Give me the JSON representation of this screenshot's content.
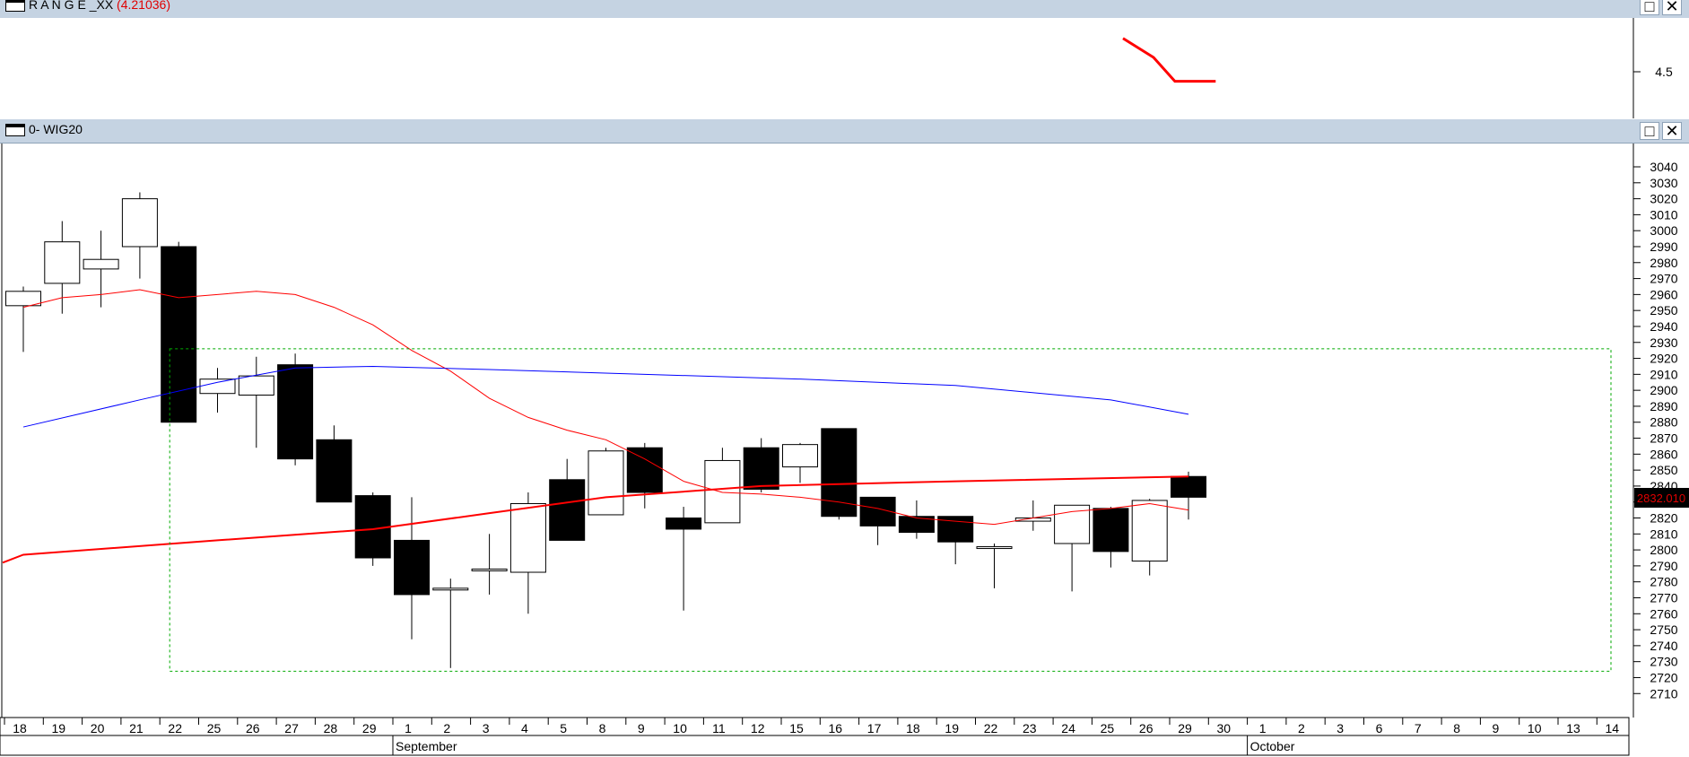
{
  "panes": {
    "range": {
      "title": "R A N G E _XX",
      "value": "(4.21036)",
      "ytick": "4.5"
    },
    "main": {
      "title": "0- WIG20",
      "price_marker": "2832.010"
    }
  },
  "colors": {
    "header_bg": "#c5d3e2",
    "ma_short": "#ff0000",
    "ma_long": "#0000ff",
    "ma_mid": "#ff0000",
    "range_line": "#ff0000",
    "box": "#00aa00"
  },
  "chart_data": {
    "type": "candlestick",
    "title": "0- WIG20",
    "ylim": [
      2700,
      3050
    ],
    "yticks": [
      3040,
      3030,
      3020,
      3010,
      3000,
      2990,
      2980,
      2970,
      2960,
      2950,
      2940,
      2930,
      2920,
      2910,
      2900,
      2890,
      2880,
      2870,
      2860,
      2850,
      2840,
      2830,
      2820,
      2810,
      2800,
      2790,
      2780,
      2770,
      2760,
      2750,
      2740,
      2730,
      2720,
      2710
    ],
    "x_labels": [
      "18",
      "19",
      "20",
      "21",
      "22",
      "25",
      "26",
      "27",
      "28",
      "29",
      "1",
      "2",
      "3",
      "4",
      "5",
      "8",
      "9",
      "10",
      "11",
      "12",
      "15",
      "16",
      "17",
      "18",
      "19",
      "22",
      "23",
      "24",
      "25",
      "26",
      "29",
      "30",
      "1",
      "2",
      "3",
      "6",
      "7",
      "8",
      "9",
      "10",
      "13",
      "14"
    ],
    "months": [
      "September",
      "October"
    ],
    "candles": [
      {
        "d": "18",
        "o": 2953,
        "h": 2965,
        "l": 2924,
        "c": 2962
      },
      {
        "d": "19",
        "o": 2967,
        "h": 3006,
        "l": 2948,
        "c": 2993
      },
      {
        "d": "20",
        "o": 2976,
        "h": 3000,
        "l": 2952,
        "c": 2982
      },
      {
        "d": "21",
        "o": 2990,
        "h": 3024,
        "l": 2970,
        "c": 3020
      },
      {
        "d": "22",
        "o": 2990,
        "h": 2993,
        "l": 2880,
        "c": 2880
      },
      {
        "d": "25",
        "o": 2898,
        "h": 2914,
        "l": 2886,
        "c": 2907
      },
      {
        "d": "26",
        "o": 2897,
        "h": 2921,
        "l": 2864,
        "c": 2909
      },
      {
        "d": "27",
        "o": 2916,
        "h": 2923,
        "l": 2853,
        "c": 2857
      },
      {
        "d": "28",
        "o": 2869,
        "h": 2878,
        "l": 2830,
        "c": 2830
      },
      {
        "d": "29",
        "o": 2834,
        "h": 2836,
        "l": 2790,
        "c": 2795
      },
      {
        "d": "1",
        "o": 2806,
        "h": 2833,
        "l": 2744,
        "c": 2772
      },
      {
        "d": "2",
        "o": 2776,
        "h": 2782,
        "l": 2726,
        "c": 2776
      },
      {
        "d": "3",
        "o": 2787,
        "h": 2810,
        "l": 2772,
        "c": 2788
      },
      {
        "d": "4",
        "o": 2786,
        "h": 2836,
        "l": 2760,
        "c": 2829
      },
      {
        "d": "5",
        "o": 2844,
        "h": 2857,
        "l": 2806,
        "c": 2806
      },
      {
        "d": "8",
        "o": 2822,
        "h": 2864,
        "l": 2822,
        "c": 2862
      },
      {
        "d": "9",
        "o": 2864,
        "h": 2867,
        "l": 2826,
        "c": 2836
      },
      {
        "d": "10",
        "o": 2820,
        "h": 2827,
        "l": 2762,
        "c": 2813
      },
      {
        "d": "11",
        "o": 2817,
        "h": 2864,
        "l": 2817,
        "c": 2856
      },
      {
        "d": "12",
        "o": 2864,
        "h": 2870,
        "l": 2836,
        "c": 2838
      },
      {
        "d": "15",
        "o": 2852,
        "h": 2867,
        "l": 2842,
        "c": 2866
      },
      {
        "d": "16",
        "o": 2876,
        "h": 2876,
        "l": 2819,
        "c": 2821
      },
      {
        "d": "17",
        "o": 2833,
        "h": 2833,
        "l": 2803,
        "c": 2815
      },
      {
        "d": "18",
        "o": 2821,
        "h": 2831,
        "l": 2807,
        "c": 2811
      },
      {
        "d": "19",
        "o": 2821,
        "h": 2821,
        "l": 2791,
        "c": 2805
      },
      {
        "d": "22",
        "o": 2802,
        "h": 2804,
        "l": 2776,
        "c": 2802
      },
      {
        "d": "23",
        "o": 2818,
        "h": 2831,
        "l": 2812,
        "c": 2820
      },
      {
        "d": "24",
        "o": 2804,
        "h": 2828,
        "l": 2774,
        "c": 2828
      },
      {
        "d": "25",
        "o": 2826,
        "h": 2827,
        "l": 2789,
        "c": 2799
      },
      {
        "d": "26",
        "o": 2793,
        "h": 2832,
        "l": 2784,
        "c": 2831
      },
      {
        "d": "29",
        "o": 2846,
        "h": 2849,
        "l": 2819,
        "c": 2833
      }
    ],
    "ma_short": [
      2952,
      2958,
      2960,
      2963,
      2958,
      2960,
      2962,
      2960,
      2952,
      2941,
      2925,
      2912,
      2895,
      2883,
      2875,
      2869,
      2857,
      2843,
      2836,
      2835,
      2833,
      2830,
      2826,
      2820,
      2818,
      2816,
      2820,
      2824,
      2826,
      2829,
      2825
    ],
    "ma_long": [
      [
        0,
        2877
      ],
      [
        3,
        2894
      ],
      [
        5,
        2905
      ],
      [
        7,
        2914
      ],
      [
        9,
        2915
      ],
      [
        12,
        2913
      ],
      [
        16,
        2910
      ],
      [
        20,
        2907
      ],
      [
        24,
        2903
      ],
      [
        28,
        2894
      ],
      [
        30,
        2885
      ]
    ],
    "ma_mid": [
      [
        0,
        2797
      ],
      [
        5,
        2806
      ],
      [
        9,
        2813
      ],
      [
        12,
        2823
      ],
      [
        15,
        2833
      ],
      [
        19,
        2840
      ],
      [
        24,
        2843
      ],
      [
        30,
        2846
      ]
    ],
    "box": {
      "x_start": 4,
      "x_end": 41,
      "y_top": 2926,
      "y_bottom": 2724
    },
    "range_indicator": [
      [
        29.1,
        4.62
      ],
      [
        29.65,
        4.42
      ],
      [
        30.7,
        4.42
      ]
    ]
  }
}
